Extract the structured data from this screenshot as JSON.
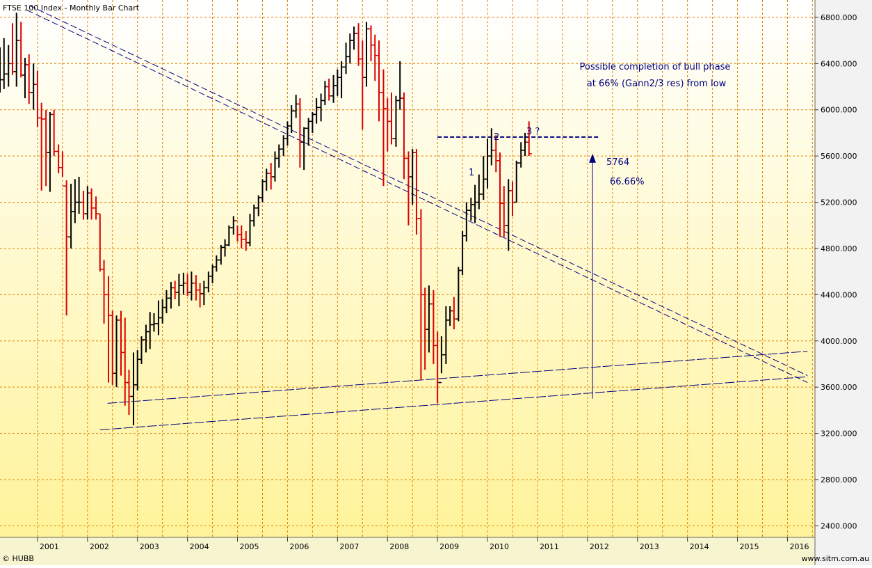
{
  "chart_data": {
    "type": "ohlc",
    "title": "FTSE 100 Index - Monthly Bar Chart",
    "credit_left": "© HUBB",
    "credit_right": "www.sitm.com.au",
    "y_ticks": [
      "2400.000",
      "2800.000",
      "3200.000",
      "3600.000",
      "4000.000",
      "4400.000",
      "4800.000",
      "5200.000",
      "5600.000",
      "6000.000",
      "6400.000",
      "6800.000"
    ],
    "x_ticks": [
      "2001",
      "2002",
      "2003",
      "2004",
      "2005",
      "2006",
      "2007",
      "2008",
      "2009",
      "2010",
      "2011",
      "2012",
      "2013",
      "2014",
      "2015",
      "2016"
    ],
    "ylim": [
      2300,
      6950
    ],
    "xlim": [
      2000.25,
      2016.55
    ],
    "grid": true,
    "colors": {
      "up": "#000000",
      "down": "#dd0000",
      "annotation": "#000080",
      "grid": "#e08000"
    },
    "bars": [
      [
        2000.25,
        6200,
        6540,
        6150,
        6260
      ],
      [
        2000.33,
        6260,
        6620,
        6180,
        6310
      ],
      [
        2000.42,
        6310,
        6560,
        6200,
        6400
      ],
      [
        2000.5,
        6400,
        6750,
        6300,
        6330
      ],
      [
        2000.58,
        6330,
        6840,
        6200,
        6600
      ],
      [
        2000.67,
        6600,
        6760,
        6280,
        6300
      ],
      [
        2000.75,
        6300,
        6450,
        6100,
        6390
      ],
      [
        2000.83,
        6390,
        6480,
        6050,
        6150
      ],
      [
        2000.92,
        6150,
        6400,
        6000,
        6220
      ],
      [
        2001,
        6220,
        6340,
        5850,
        5930
      ],
      [
        2001.08,
        5930,
        6060,
        5300,
        5920
      ],
      [
        2001.17,
        5920,
        6000,
        5340,
        5630
      ],
      [
        2001.25,
        5630,
        5980,
        5290,
        5960
      ],
      [
        2001.33,
        5960,
        6000,
        5600,
        5640
      ],
      [
        2001.42,
        5640,
        5700,
        5450,
        5500
      ],
      [
        2001.5,
        5500,
        5640,
        5420,
        5340
      ],
      [
        2001.58,
        5340,
        5390,
        4220,
        4900
      ],
      [
        2001.67,
        4900,
        5360,
        4800,
        5120
      ],
      [
        2001.75,
        5120,
        5400,
        5020,
        5200
      ],
      [
        2001.83,
        5200,
        5420,
        5100,
        5200
      ],
      [
        2001.92,
        5200,
        5300,
        5050,
        5100
      ],
      [
        2002,
        5100,
        5340,
        5050,
        5280
      ],
      [
        2002.08,
        5280,
        5320,
        5050,
        5150
      ],
      [
        2002.17,
        5150,
        5250,
        5050,
        5100
      ],
      [
        2002.25,
        5100,
        5100,
        4600,
        4620
      ],
      [
        2002.33,
        4620,
        4700,
        4150,
        4400
      ],
      [
        2002.42,
        4400,
        4560,
        3640,
        4220
      ],
      [
        2002.5,
        4220,
        4260,
        3620,
        3720
      ],
      [
        2002.58,
        3720,
        4220,
        3600,
        4180
      ],
      [
        2002.67,
        4180,
        4260,
        3700,
        3900
      ],
      [
        2002.75,
        3900,
        4200,
        3440,
        3640
      ],
      [
        2002.83,
        3640,
        3750,
        3360,
        3520
      ],
      [
        2002.92,
        3520,
        3900,
        3270,
        3620
      ],
      [
        2003,
        3620,
        3920,
        3570,
        3840
      ],
      [
        2003.08,
        3840,
        4040,
        3800,
        4010
      ],
      [
        2003.17,
        4010,
        4140,
        3900,
        4080
      ],
      [
        2003.25,
        4080,
        4250,
        3930,
        4140
      ],
      [
        2003.33,
        4140,
        4240,
        4080,
        4150
      ],
      [
        2003.42,
        4150,
        4350,
        4050,
        4200
      ],
      [
        2003.5,
        4200,
        4360,
        4150,
        4290
      ],
      [
        2003.58,
        4290,
        4440,
        4240,
        4370
      ],
      [
        2003.67,
        4370,
        4510,
        4280,
        4460
      ],
      [
        2003.75,
        4460,
        4520,
        4360,
        4420
      ],
      [
        2003.83,
        4420,
        4580,
        4300,
        4480
      ],
      [
        2003.92,
        4480,
        4590,
        4400,
        4500
      ],
      [
        2004,
        4500,
        4580,
        4390,
        4420
      ],
      [
        2004.08,
        4420,
        4600,
        4350,
        4500
      ],
      [
        2004.17,
        4500,
        4570,
        4350,
        4440
      ],
      [
        2004.25,
        4440,
        4500,
        4290,
        4410
      ],
      [
        2004.33,
        4410,
        4520,
        4310,
        4460
      ],
      [
        2004.42,
        4460,
        4600,
        4420,
        4560
      ],
      [
        2004.5,
        4560,
        4660,
        4500,
        4640
      ],
      [
        2004.58,
        4640,
        4740,
        4600,
        4700
      ],
      [
        2004.67,
        4700,
        4830,
        4660,
        4810
      ],
      [
        2004.75,
        4810,
        4880,
        4730,
        4830
      ],
      [
        2004.83,
        4830,
        5000,
        4820,
        4980
      ],
      [
        2004.92,
        4980,
        5080,
        4920,
        5040
      ],
      [
        2005,
        5040,
        5000,
        4860,
        4920
      ],
      [
        2005.08,
        4920,
        5000,
        4800,
        4880
      ],
      [
        2005.17,
        4880,
        4950,
        4780,
        4850
      ],
      [
        2005.25,
        4850,
        5100,
        4820,
        5040
      ],
      [
        2005.33,
        5040,
        5180,
        4990,
        5150
      ],
      [
        2005.42,
        5150,
        5260,
        5080,
        5240
      ],
      [
        2005.5,
        5240,
        5400,
        5200,
        5380
      ],
      [
        2005.58,
        5380,
        5490,
        5300,
        5450
      ],
      [
        2005.67,
        5450,
        5540,
        5310,
        5420
      ],
      [
        2005.75,
        5420,
        5640,
        5380,
        5580
      ],
      [
        2005.83,
        5580,
        5700,
        5500,
        5660
      ],
      [
        2005.92,
        5660,
        5780,
        5600,
        5750
      ],
      [
        2006,
        5750,
        5900,
        5690,
        5860
      ],
      [
        2006.08,
        5860,
        6040,
        5800,
        5990
      ],
      [
        2006.17,
        5990,
        6130,
        5930,
        6050
      ],
      [
        2006.25,
        6050,
        6100,
        5500,
        5720
      ],
      [
        2006.33,
        5720,
        5850,
        5480,
        5840
      ],
      [
        2006.42,
        5840,
        5930,
        5690,
        5900
      ],
      [
        2006.5,
        5900,
        5980,
        5800,
        5960
      ],
      [
        2006.58,
        5960,
        6100,
        5880,
        6020
      ],
      [
        2006.67,
        6020,
        6140,
        5900,
        6080
      ],
      [
        2006.75,
        6080,
        6250,
        6040,
        6200
      ],
      [
        2006.83,
        6200,
        6270,
        6080,
        6120
      ],
      [
        2006.92,
        6120,
        6300,
        6060,
        6210
      ],
      [
        2007,
        6210,
        6350,
        6120,
        6280
      ],
      [
        2007.08,
        6280,
        6420,
        6100,
        6370
      ],
      [
        2007.17,
        6370,
        6580,
        6310,
        6460
      ],
      [
        2007.25,
        6460,
        6660,
        6400,
        6600
      ],
      [
        2007.33,
        6600,
        6720,
        6520,
        6660
      ],
      [
        2007.42,
        6660,
        6750,
        6380,
        6440
      ],
      [
        2007.5,
        6440,
        6600,
        5830,
        6280
      ],
      [
        2007.58,
        6280,
        6760,
        6200,
        6700
      ],
      [
        2007.67,
        6700,
        6730,
        6420,
        6560
      ],
      [
        2007.75,
        6560,
        6650,
        6250,
        6470
      ],
      [
        2007.83,
        6470,
        6600,
        5900,
        6150
      ],
      [
        2007.92,
        6150,
        6350,
        5340,
        6010
      ],
      [
        2008,
        6010,
        6100,
        5640,
        5900
      ],
      [
        2008.08,
        5900,
        6150,
        5700,
        5750
      ],
      [
        2008.17,
        5750,
        6120,
        5680,
        6080
      ],
      [
        2008.25,
        6080,
        6420,
        6000,
        6100
      ],
      [
        2008.33,
        6100,
        6150,
        5400,
        5580
      ],
      [
        2008.42,
        5580,
        5640,
        5000,
        5420
      ],
      [
        2008.5,
        5420,
        5660,
        5180,
        5630
      ],
      [
        2008.58,
        5630,
        5660,
        4920,
        5060
      ],
      [
        2008.67,
        5060,
        5140,
        3660,
        4400
      ],
      [
        2008.75,
        4400,
        4460,
        3750,
        4100
      ],
      [
        2008.83,
        4100,
        4480,
        3900,
        4320
      ],
      [
        2008.92,
        4320,
        4440,
        3800,
        3960
      ],
      [
        2009,
        3960,
        4080,
        3460,
        3640
      ],
      [
        2009.08,
        3640,
        4040,
        3720,
        3880
      ],
      [
        2009.17,
        3880,
        4300,
        3800,
        4180
      ],
      [
        2009.25,
        4180,
        4300,
        4130,
        4260
      ],
      [
        2009.33,
        4260,
        4380,
        4100,
        4190
      ],
      [
        2009.42,
        4190,
        4640,
        4170,
        4610
      ],
      [
        2009.5,
        4610,
        4950,
        4570,
        4910
      ],
      [
        2009.58,
        4910,
        5200,
        4860,
        5130
      ],
      [
        2009.67,
        5130,
        5240,
        5040,
        5180
      ],
      [
        2009.75,
        5180,
        5350,
        5020,
        5200
      ],
      [
        2009.83,
        5200,
        5440,
        5140,
        5270
      ],
      [
        2009.92,
        5270,
        5600,
        5220,
        5400
      ],
      [
        2010,
        5400,
        5750,
        5320,
        5600
      ],
      [
        2010.08,
        5600,
        5840,
        5520,
        5650
      ],
      [
        2010.17,
        5650,
        5780,
        5460,
        5560
      ],
      [
        2010.25,
        5560,
        5630,
        4900,
        5190
      ],
      [
        2010.33,
        5190,
        5340,
        4900,
        5000
      ],
      [
        2010.42,
        5000,
        5400,
        4780,
        5300
      ],
      [
        2010.5,
        5300,
        5380,
        5080,
        5200
      ],
      [
        2010.58,
        5200,
        5560,
        5200,
        5540
      ],
      [
        2010.67,
        5540,
        5720,
        5500,
        5650
      ],
      [
        2010.75,
        5650,
        5800,
        5600,
        5720
      ],
      [
        2010.83,
        5720,
        5900,
        5600,
        5620
      ]
    ],
    "annotations": {
      "note_line1": "Possible completion of bull phase",
      "note_line2": "at 66% (Gann2/3 res) from low",
      "level_value": "5764",
      "level_pct": "66.66%",
      "wave1": "1",
      "wave2": "2",
      "wave3": "3 ?"
    },
    "level": 5764,
    "channel_upper": [
      [
        2000.85,
        6900
      ],
      [
        2016.4,
        3700
      ]
    ],
    "channel_upper2": [
      [
        2000.8,
        6860
      ],
      [
        2016.4,
        3640
      ]
    ],
    "support_lines": [
      [
        [
          2002.4,
          3460
        ],
        [
          2016.4,
          3910
        ]
      ],
      [
        [
          2002.25,
          3230
        ],
        [
          2016.4,
          3690
        ]
      ]
    ],
    "arrow": {
      "x": 2012.1,
      "from": 3500,
      "to": 5620
    }
  }
}
